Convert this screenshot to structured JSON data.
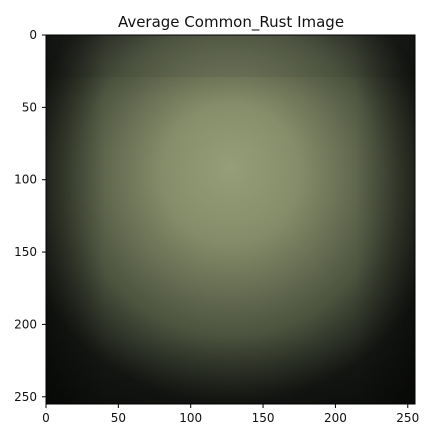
{
  "figure": {
    "title": "Average Common_Rust Image"
  },
  "chart_data": {
    "type": "heatmap",
    "title": "Average Common_Rust Image",
    "xlabel": "",
    "ylabel": "",
    "xlim": [
      0,
      255
    ],
    "ylim": [
      255,
      0
    ],
    "x_ticks": [
      0,
      50,
      100,
      150,
      200,
      250
    ],
    "y_ticks": [
      0,
      50,
      100,
      150,
      200,
      250
    ],
    "grid": false,
    "image_description": {
      "colors": {
        "center": "#969f79",
        "upper_center": "#868d6a",
        "mid_edge": "#4e5540",
        "outer_edge": "#151814",
        "corner": "#0f120e"
      }
    }
  }
}
